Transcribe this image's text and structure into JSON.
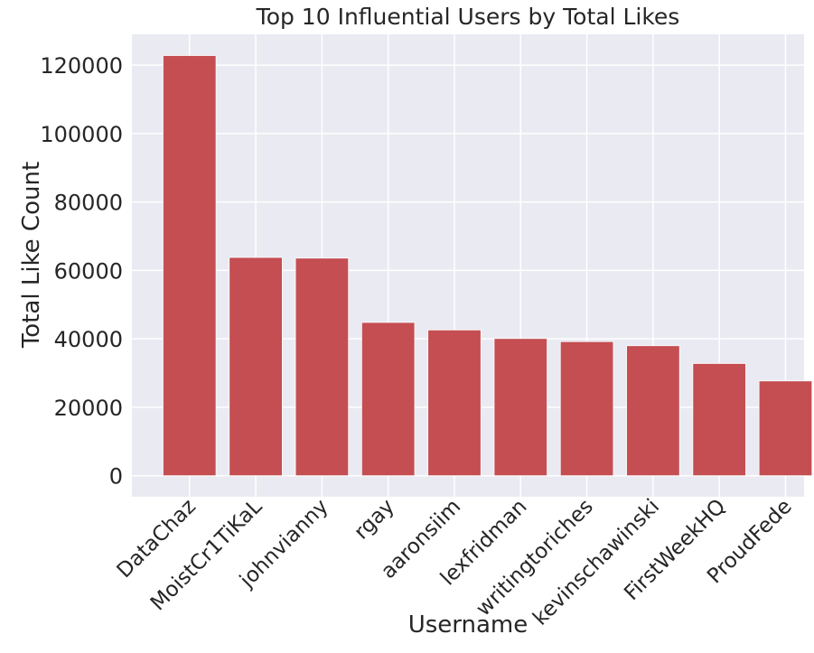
{
  "chart_data": {
    "type": "bar",
    "title": "Top 10 Influential Users by Total Likes",
    "xlabel": "Username",
    "ylabel": "Total Like Count",
    "categories": [
      "DataChaz",
      "MoistCr1TiKaL",
      "johnvianny",
      "rgay",
      "aaronsiim",
      "lexfridman",
      "writingtoriches",
      "kevinschawinski",
      "FirstWeekHQ",
      "ProudFede"
    ],
    "values": [
      122800,
      63800,
      63600,
      44800,
      42600,
      40100,
      39200,
      38000,
      32800,
      27700
    ],
    "yticks": [
      0,
      20000,
      40000,
      60000,
      80000,
      100000,
      120000
    ],
    "ylim": [
      -6150,
      129000
    ],
    "grid": true,
    "bar_color": "#c44e52",
    "background_color": "#eaeaf2",
    "grid_color": "#ffffff"
  }
}
